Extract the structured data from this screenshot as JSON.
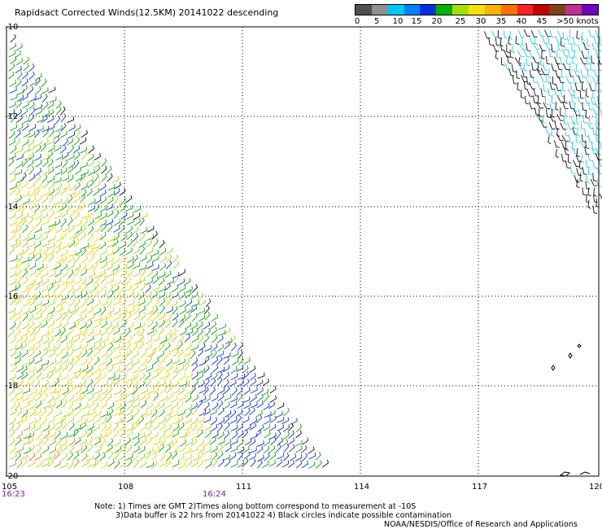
{
  "title": "Rapidsact Corrected Winds(12.5KM) 20141022 descending",
  "legend": {
    "labels": [
      "0",
      "5",
      "10",
      "15",
      "20",
      "25",
      "30",
      "35",
      "40",
      "45",
      ">50 knots"
    ],
    "colors": [
      "#505050",
      "#909090",
      "#00c8f0",
      "#0080ff",
      "#0030e0",
      "#00b000",
      "#a0e000",
      "#ffe000",
      "#ffb000",
      "#ff7000",
      "#ff2020",
      "#c00000",
      "#804020",
      "#c03090",
      "#7000c0"
    ]
  },
  "map": {
    "lat_labels": [
      "-10",
      "-12",
      "-14",
      "-16",
      "-18",
      "-20"
    ],
    "lon_labels": [
      "105",
      "108",
      "111",
      "114",
      "117",
      "120"
    ],
    "time_labels": [
      "16:23",
      "16:24"
    ],
    "lat_range": [
      -20,
      -10
    ],
    "lon_range": [
      105,
      120
    ]
  },
  "notes": {
    "line1": "Note: 1) Times are GMT 2)Times along bottom correspond to measurement at -10S",
    "line2": "3)Data buffer is 22 hrs from 20141022 4) Black circles indicate possible contamination"
  },
  "credit": "NOAA/NESDIS/Office of Research and Applications"
}
